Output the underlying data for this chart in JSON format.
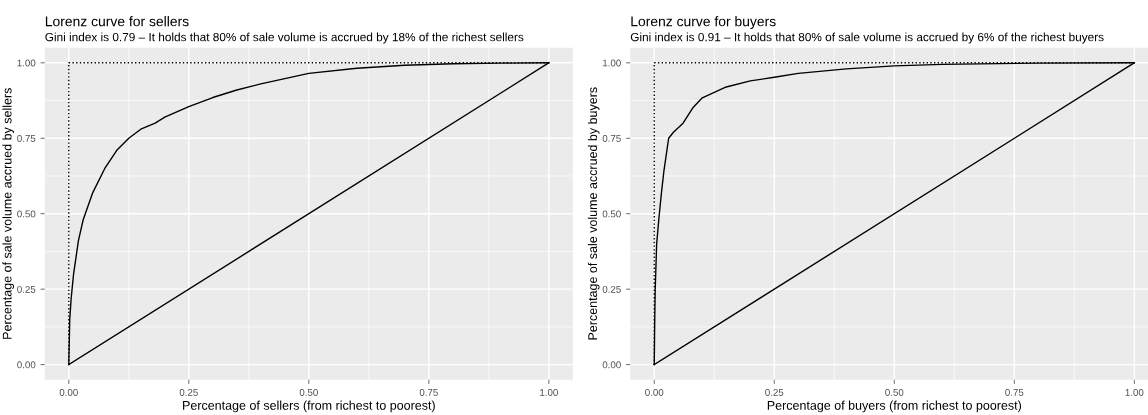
{
  "chart_data": [
    {
      "type": "line",
      "title": "Lorenz curve for sellers",
      "subtitle": "Gini index is 0.79 – It holds that 80% of sale volume is accrued by 18% of the richest sellers",
      "xlabel": "Percentage of sellers (from richest to poorest)",
      "ylabel": "Percentage of sale volume accrued by sellers",
      "xlim": [
        -0.05,
        1.05
      ],
      "ylim": [
        -0.05,
        1.05
      ],
      "xticks": [
        {
          "value": 0,
          "label": "0.00"
        },
        {
          "value": 0.25,
          "label": "0.25"
        },
        {
          "value": 0.5,
          "label": "0.50"
        },
        {
          "value": 0.75,
          "label": "0.75"
        },
        {
          "value": 1,
          "label": "1.00"
        }
      ],
      "yticks": [
        {
          "value": 0,
          "label": "0.00"
        },
        {
          "value": 0.25,
          "label": "0.25"
        },
        {
          "value": 0.5,
          "label": "0.50"
        },
        {
          "value": 0.75,
          "label": "0.75"
        },
        {
          "value": 1,
          "label": "1.00"
        }
      ],
      "grid": true,
      "legend": false,
      "series": [
        {
          "color": "#000000",
          "line_style": "dotted",
          "x": [
            0,
            0,
            1
          ],
          "values": [
            0,
            1,
            1
          ]
        },
        {
          "color": "#000000",
          "line_style": "solid",
          "x": [
            0,
            1
          ],
          "values": [
            0,
            1
          ]
        },
        {
          "color": "#000000",
          "line_style": "solid",
          "x": [
            0,
            0.002,
            0.005,
            0.01,
            0.02,
            0.03,
            0.05,
            0.075,
            0.1,
            0.125,
            0.15,
            0.18,
            0.2,
            0.25,
            0.3,
            0.35,
            0.4,
            0.5,
            0.6,
            0.7,
            0.8,
            0.9,
            1
          ],
          "values": [
            0,
            0.15,
            0.22,
            0.3,
            0.41,
            0.48,
            0.57,
            0.65,
            0.71,
            0.75,
            0.78,
            0.8,
            0.82,
            0.855,
            0.885,
            0.91,
            0.93,
            0.965,
            0.982,
            0.992,
            0.997,
            0.999,
            1
          ]
        }
      ]
    },
    {
      "type": "line",
      "title": "Lorenz curve for buyers",
      "subtitle": "Gini index is 0.91 – It holds that 80% of sale volume is accrued by 6% of the richest buyers",
      "xlabel": "Percentage of buyers (from richest to poorest)",
      "ylabel": "Percentage of sale volume accrued by buyers",
      "xlim": [
        -0.05,
        1.05
      ],
      "ylim": [
        -0.05,
        1.05
      ],
      "xticks": [
        {
          "value": 0,
          "label": "0.00"
        },
        {
          "value": 0.25,
          "label": "0.25"
        },
        {
          "value": 0.5,
          "label": "0.50"
        },
        {
          "value": 0.75,
          "label": "0.75"
        },
        {
          "value": 1,
          "label": "1.00"
        }
      ],
      "yticks": [
        {
          "value": 0,
          "label": "0.00"
        },
        {
          "value": 0.25,
          "label": "0.25"
        },
        {
          "value": 0.5,
          "label": "0.50"
        },
        {
          "value": 0.75,
          "label": "0.75"
        },
        {
          "value": 1,
          "label": "1.00"
        }
      ],
      "grid": true,
      "legend": false,
      "series": [
        {
          "color": "#000000",
          "line_style": "dotted",
          "x": [
            0,
            0,
            1
          ],
          "values": [
            0,
            1,
            1
          ]
        },
        {
          "color": "#000000",
          "line_style": "solid",
          "x": [
            0,
            1
          ],
          "values": [
            0,
            1
          ]
        },
        {
          "color": "#000000",
          "line_style": "solid",
          "x": [
            0,
            0.001,
            0.002,
            0.005,
            0.01,
            0.015,
            0.02,
            0.03,
            0.04,
            0.06,
            0.08,
            0.1,
            0.15,
            0.2,
            0.25,
            0.3,
            0.4,
            0.5,
            0.6,
            0.8,
            1
          ],
          "values": [
            0,
            0.15,
            0.25,
            0.4,
            0.49,
            0.57,
            0.64,
            0.75,
            0.77,
            0.8,
            0.85,
            0.884,
            0.92,
            0.94,
            0.952,
            0.965,
            0.98,
            0.99,
            0.995,
            0.999,
            1
          ]
        }
      ]
    }
  ]
}
